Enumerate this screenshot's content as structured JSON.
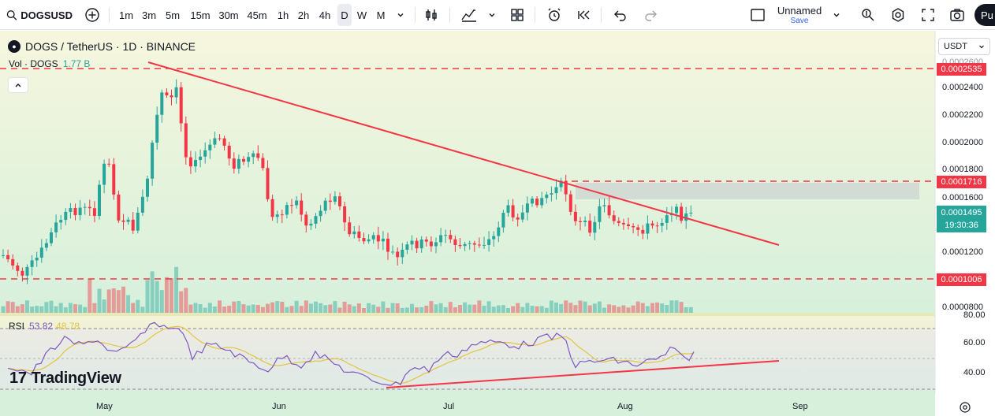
{
  "toolbar": {
    "symbol": "DOGSUSD",
    "intervals": [
      "1m",
      "3m",
      "5m",
      "15m",
      "30m",
      "45m",
      "1h",
      "2h",
      "4h",
      "D",
      "W",
      "M"
    ],
    "active_interval": "D",
    "layout_name": "Unnamed",
    "layout_save": "Save",
    "publish": "Pu"
  },
  "legend": {
    "title": "DOGS / TetherUS · 1D · BINANCE",
    "vol_label": "Vol · DOGS",
    "vol_value": "1.77 B",
    "rsi_label": "RSI",
    "rsi_value": "53.82",
    "rsi_ma_value": "48.78"
  },
  "watermark": "TradingView",
  "currency": "USDT",
  "price_axis": {
    "ticks": [
      "0.0002600",
      "0.0002400",
      "0.0002200",
      "0.0002000",
      "0.0001800",
      "0.0001600",
      "0.0001200",
      "0.0000800"
    ],
    "badges": {
      "top": "0.0002535",
      "mid": "0.0001716",
      "low": "0.0001006"
    },
    "last_price": "0.0001495",
    "countdown": "19:30:36"
  },
  "rsi_axis": {
    "ticks": [
      "80.00",
      "60.00",
      "40.00"
    ]
  },
  "time_axis": [
    "May",
    "Jun",
    "Jul",
    "Aug",
    "Sep"
  ],
  "colors": {
    "up": "#26a69a",
    "down": "#f23645",
    "trendline": "#f23645",
    "rsi": "#7e57c2",
    "rsi_ma": "#e3c441"
  }
}
